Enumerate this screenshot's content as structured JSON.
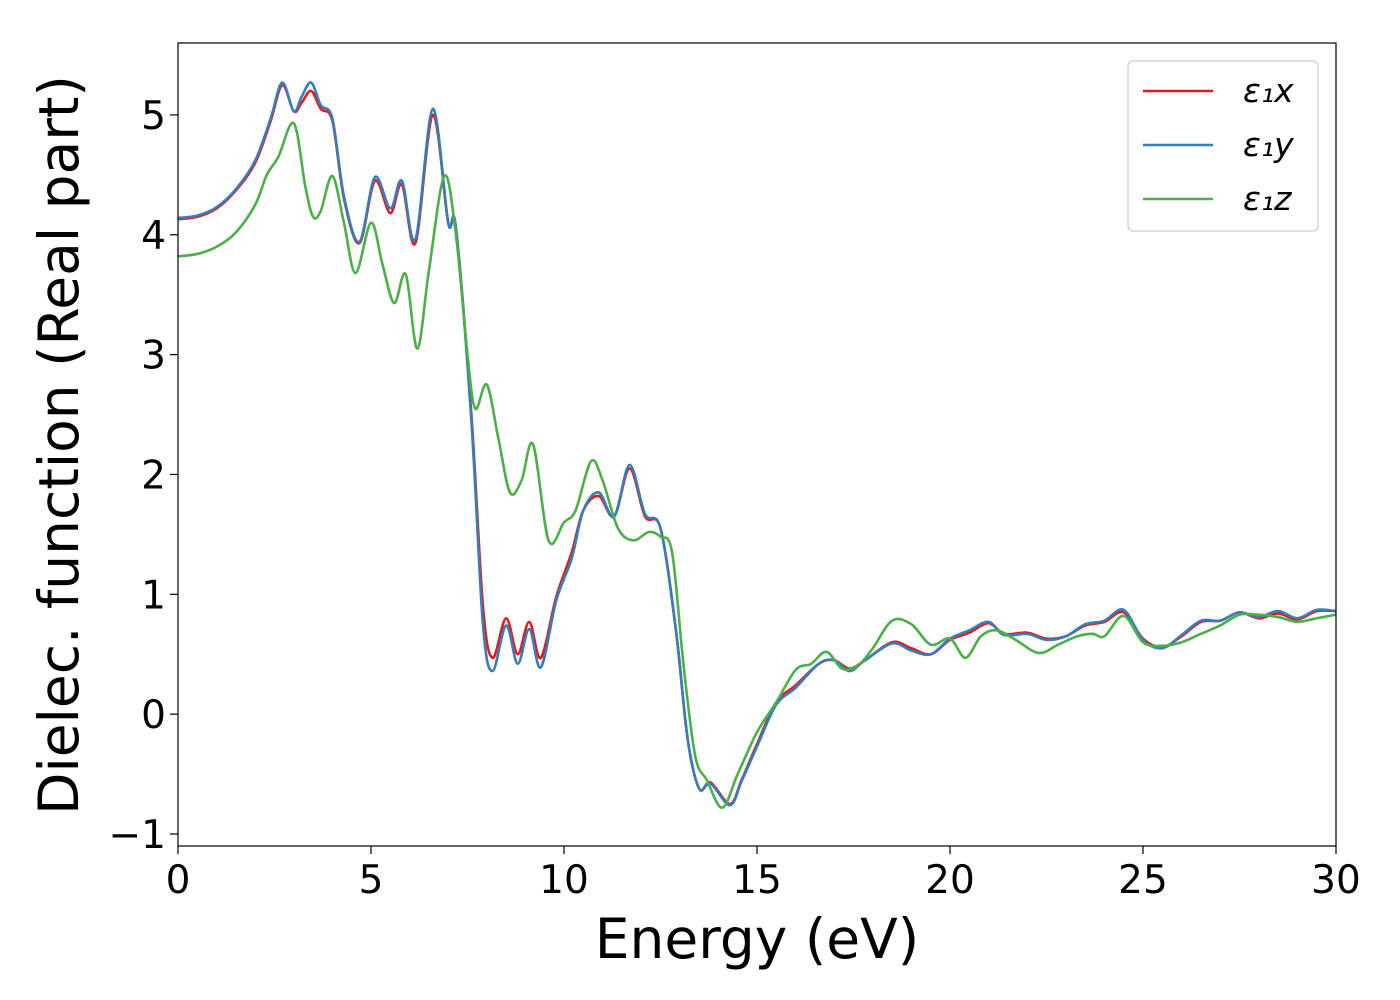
{
  "chart_data": {
    "type": "line",
    "title": "",
    "xlabel": "Energy (eV)",
    "ylabel": "Dielec. function (Real part)",
    "xlim": [
      0,
      30
    ],
    "ylim": [
      -1.1,
      5.6
    ],
    "xticks": [
      0,
      5,
      10,
      15,
      20,
      25,
      30
    ],
    "xtick_labels": [
      "0",
      "5",
      "10",
      "15",
      "20",
      "25",
      "30"
    ],
    "yticks": [
      -1,
      0,
      1,
      2,
      3,
      4,
      5
    ],
    "ytick_labels": [
      "−1",
      "0",
      "1",
      "2",
      "3",
      "4",
      "5"
    ],
    "grid": false,
    "legend_position": "top-right",
    "series": [
      {
        "name": "ε₁x",
        "color": "#e41a1c",
        "points": [
          [
            0,
            4.13
          ],
          [
            0.5,
            4.15
          ],
          [
            1.0,
            4.22
          ],
          [
            1.5,
            4.37
          ],
          [
            2.0,
            4.6
          ],
          [
            2.4,
            4.95
          ],
          [
            2.7,
            5.25
          ],
          [
            3.0,
            5.03
          ],
          [
            3.2,
            5.1
          ],
          [
            3.45,
            5.2
          ],
          [
            3.7,
            5.05
          ],
          [
            4.0,
            4.95
          ],
          [
            4.3,
            4.3
          ],
          [
            4.7,
            3.93
          ],
          [
            5.1,
            4.45
          ],
          [
            5.5,
            4.18
          ],
          [
            5.8,
            4.42
          ],
          [
            6.15,
            3.93
          ],
          [
            6.6,
            5.0
          ],
          [
            7.0,
            4.1
          ],
          [
            7.2,
            4.05
          ],
          [
            7.6,
            2.5
          ],
          [
            7.9,
            0.9
          ],
          [
            8.15,
            0.47
          ],
          [
            8.5,
            0.8
          ],
          [
            8.8,
            0.5
          ],
          [
            9.1,
            0.77
          ],
          [
            9.4,
            0.47
          ],
          [
            9.8,
            0.98
          ],
          [
            10.2,
            1.35
          ],
          [
            10.5,
            1.7
          ],
          [
            10.9,
            1.82
          ],
          [
            11.3,
            1.65
          ],
          [
            11.7,
            2.05
          ],
          [
            12.1,
            1.65
          ],
          [
            12.5,
            1.55
          ],
          [
            12.9,
            0.7
          ],
          [
            13.2,
            -0.2
          ],
          [
            13.5,
            -0.62
          ],
          [
            13.8,
            -0.57
          ],
          [
            14.3,
            -0.75
          ],
          [
            14.6,
            -0.55
          ],
          [
            15.0,
            -0.25
          ],
          [
            15.5,
            0.1
          ],
          [
            16.0,
            0.24
          ],
          [
            16.6,
            0.42
          ],
          [
            17.0,
            0.45
          ],
          [
            17.4,
            0.38
          ],
          [
            17.8,
            0.45
          ],
          [
            18.5,
            0.6
          ],
          [
            19.0,
            0.55
          ],
          [
            19.5,
            0.5
          ],
          [
            20.0,
            0.62
          ],
          [
            20.5,
            0.68
          ],
          [
            21.0,
            0.76
          ],
          [
            21.4,
            0.67
          ],
          [
            22.0,
            0.68
          ],
          [
            22.5,
            0.63
          ],
          [
            23.0,
            0.65
          ],
          [
            23.5,
            0.74
          ],
          [
            24.0,
            0.77
          ],
          [
            24.5,
            0.85
          ],
          [
            25.0,
            0.63
          ],
          [
            25.5,
            0.56
          ],
          [
            26.0,
            0.65
          ],
          [
            26.5,
            0.77
          ],
          [
            27.0,
            0.78
          ],
          [
            27.5,
            0.85
          ],
          [
            28.0,
            0.8
          ],
          [
            28.5,
            0.84
          ],
          [
            29.0,
            0.79
          ],
          [
            29.5,
            0.86
          ],
          [
            30.0,
            0.86
          ]
        ]
      },
      {
        "name": "ε₁y",
        "color": "#377eb8",
        "points": [
          [
            0,
            4.14
          ],
          [
            0.5,
            4.16
          ],
          [
            1.0,
            4.23
          ],
          [
            1.5,
            4.38
          ],
          [
            2.0,
            4.62
          ],
          [
            2.4,
            4.97
          ],
          [
            2.7,
            5.27
          ],
          [
            3.0,
            5.03
          ],
          [
            3.2,
            5.15
          ],
          [
            3.45,
            5.27
          ],
          [
            3.7,
            5.08
          ],
          [
            4.0,
            4.97
          ],
          [
            4.3,
            4.32
          ],
          [
            4.7,
            3.94
          ],
          [
            5.1,
            4.48
          ],
          [
            5.5,
            4.22
          ],
          [
            5.8,
            4.45
          ],
          [
            6.15,
            3.96
          ],
          [
            6.6,
            5.05
          ],
          [
            7.0,
            4.1
          ],
          [
            7.2,
            4.06
          ],
          [
            7.6,
            2.45
          ],
          [
            7.9,
            0.75
          ],
          [
            8.15,
            0.36
          ],
          [
            8.5,
            0.74
          ],
          [
            8.8,
            0.42
          ],
          [
            9.1,
            0.71
          ],
          [
            9.4,
            0.39
          ],
          [
            9.8,
            0.95
          ],
          [
            10.2,
            1.3
          ],
          [
            10.5,
            1.7
          ],
          [
            10.9,
            1.85
          ],
          [
            11.3,
            1.65
          ],
          [
            11.7,
            2.08
          ],
          [
            12.1,
            1.67
          ],
          [
            12.5,
            1.55
          ],
          [
            12.9,
            0.7
          ],
          [
            13.2,
            -0.2
          ],
          [
            13.5,
            -0.62
          ],
          [
            13.8,
            -0.58
          ],
          [
            14.3,
            -0.76
          ],
          [
            14.6,
            -0.56
          ],
          [
            15.0,
            -0.27
          ],
          [
            15.5,
            0.08
          ],
          [
            16.0,
            0.22
          ],
          [
            16.6,
            0.42
          ],
          [
            17.0,
            0.45
          ],
          [
            17.4,
            0.36
          ],
          [
            17.8,
            0.45
          ],
          [
            18.5,
            0.59
          ],
          [
            19.0,
            0.53
          ],
          [
            19.5,
            0.5
          ],
          [
            20.0,
            0.63
          ],
          [
            20.5,
            0.7
          ],
          [
            21.0,
            0.77
          ],
          [
            21.4,
            0.66
          ],
          [
            22.0,
            0.67
          ],
          [
            22.5,
            0.62
          ],
          [
            23.0,
            0.65
          ],
          [
            23.5,
            0.75
          ],
          [
            24.0,
            0.78
          ],
          [
            24.5,
            0.87
          ],
          [
            25.0,
            0.62
          ],
          [
            25.5,
            0.55
          ],
          [
            26.0,
            0.66
          ],
          [
            26.5,
            0.78
          ],
          [
            27.0,
            0.78
          ],
          [
            27.5,
            0.85
          ],
          [
            28.0,
            0.81
          ],
          [
            28.5,
            0.86
          ],
          [
            29.0,
            0.8
          ],
          [
            29.5,
            0.87
          ],
          [
            30.0,
            0.86
          ]
        ]
      },
      {
        "name": "ε₁z",
        "color": "#4daf4a",
        "points": [
          [
            0,
            3.82
          ],
          [
            0.5,
            3.84
          ],
          [
            1.0,
            3.9
          ],
          [
            1.5,
            4.02
          ],
          [
            2.0,
            4.25
          ],
          [
            2.3,
            4.5
          ],
          [
            2.6,
            4.65
          ],
          [
            3.0,
            4.93
          ],
          [
            3.3,
            4.4
          ],
          [
            3.5,
            4.15
          ],
          [
            3.7,
            4.2
          ],
          [
            4.0,
            4.49
          ],
          [
            4.3,
            4.1
          ],
          [
            4.6,
            3.68
          ],
          [
            5.0,
            4.1
          ],
          [
            5.3,
            3.75
          ],
          [
            5.6,
            3.43
          ],
          [
            5.9,
            3.67
          ],
          [
            6.2,
            3.05
          ],
          [
            6.5,
            3.7
          ],
          [
            6.9,
            4.49
          ],
          [
            7.2,
            4.0
          ],
          [
            7.5,
            3.0
          ],
          [
            7.7,
            2.55
          ],
          [
            8.0,
            2.75
          ],
          [
            8.3,
            2.3
          ],
          [
            8.6,
            1.85
          ],
          [
            8.9,
            1.95
          ],
          [
            9.2,
            2.25
          ],
          [
            9.6,
            1.45
          ],
          [
            10.0,
            1.6
          ],
          [
            10.3,
            1.7
          ],
          [
            10.7,
            2.11
          ],
          [
            11.0,
            1.95
          ],
          [
            11.4,
            1.55
          ],
          [
            11.8,
            1.45
          ],
          [
            12.2,
            1.52
          ],
          [
            12.5,
            1.48
          ],
          [
            12.8,
            1.35
          ],
          [
            13.1,
            0.4
          ],
          [
            13.4,
            -0.35
          ],
          [
            13.7,
            -0.55
          ],
          [
            14.1,
            -0.78
          ],
          [
            14.5,
            -0.5
          ],
          [
            15.0,
            -0.15
          ],
          [
            15.5,
            0.1
          ],
          [
            16.0,
            0.37
          ],
          [
            16.4,
            0.42
          ],
          [
            16.8,
            0.52
          ],
          [
            17.2,
            0.38
          ],
          [
            17.6,
            0.4
          ],
          [
            18.0,
            0.55
          ],
          [
            18.5,
            0.78
          ],
          [
            19.0,
            0.75
          ],
          [
            19.5,
            0.58
          ],
          [
            20.0,
            0.63
          ],
          [
            20.4,
            0.47
          ],
          [
            20.8,
            0.65
          ],
          [
            21.2,
            0.7
          ],
          [
            21.7,
            0.62
          ],
          [
            22.3,
            0.51
          ],
          [
            22.8,
            0.58
          ],
          [
            23.3,
            0.65
          ],
          [
            23.7,
            0.67
          ],
          [
            24.0,
            0.65
          ],
          [
            24.5,
            0.82
          ],
          [
            25.0,
            0.6
          ],
          [
            25.5,
            0.57
          ],
          [
            26.0,
            0.6
          ],
          [
            26.5,
            0.67
          ],
          [
            27.0,
            0.74
          ],
          [
            27.5,
            0.83
          ],
          [
            28.0,
            0.83
          ],
          [
            28.5,
            0.81
          ],
          [
            29.0,
            0.77
          ],
          [
            29.5,
            0.8
          ],
          [
            30.0,
            0.83
          ]
        ]
      }
    ]
  }
}
